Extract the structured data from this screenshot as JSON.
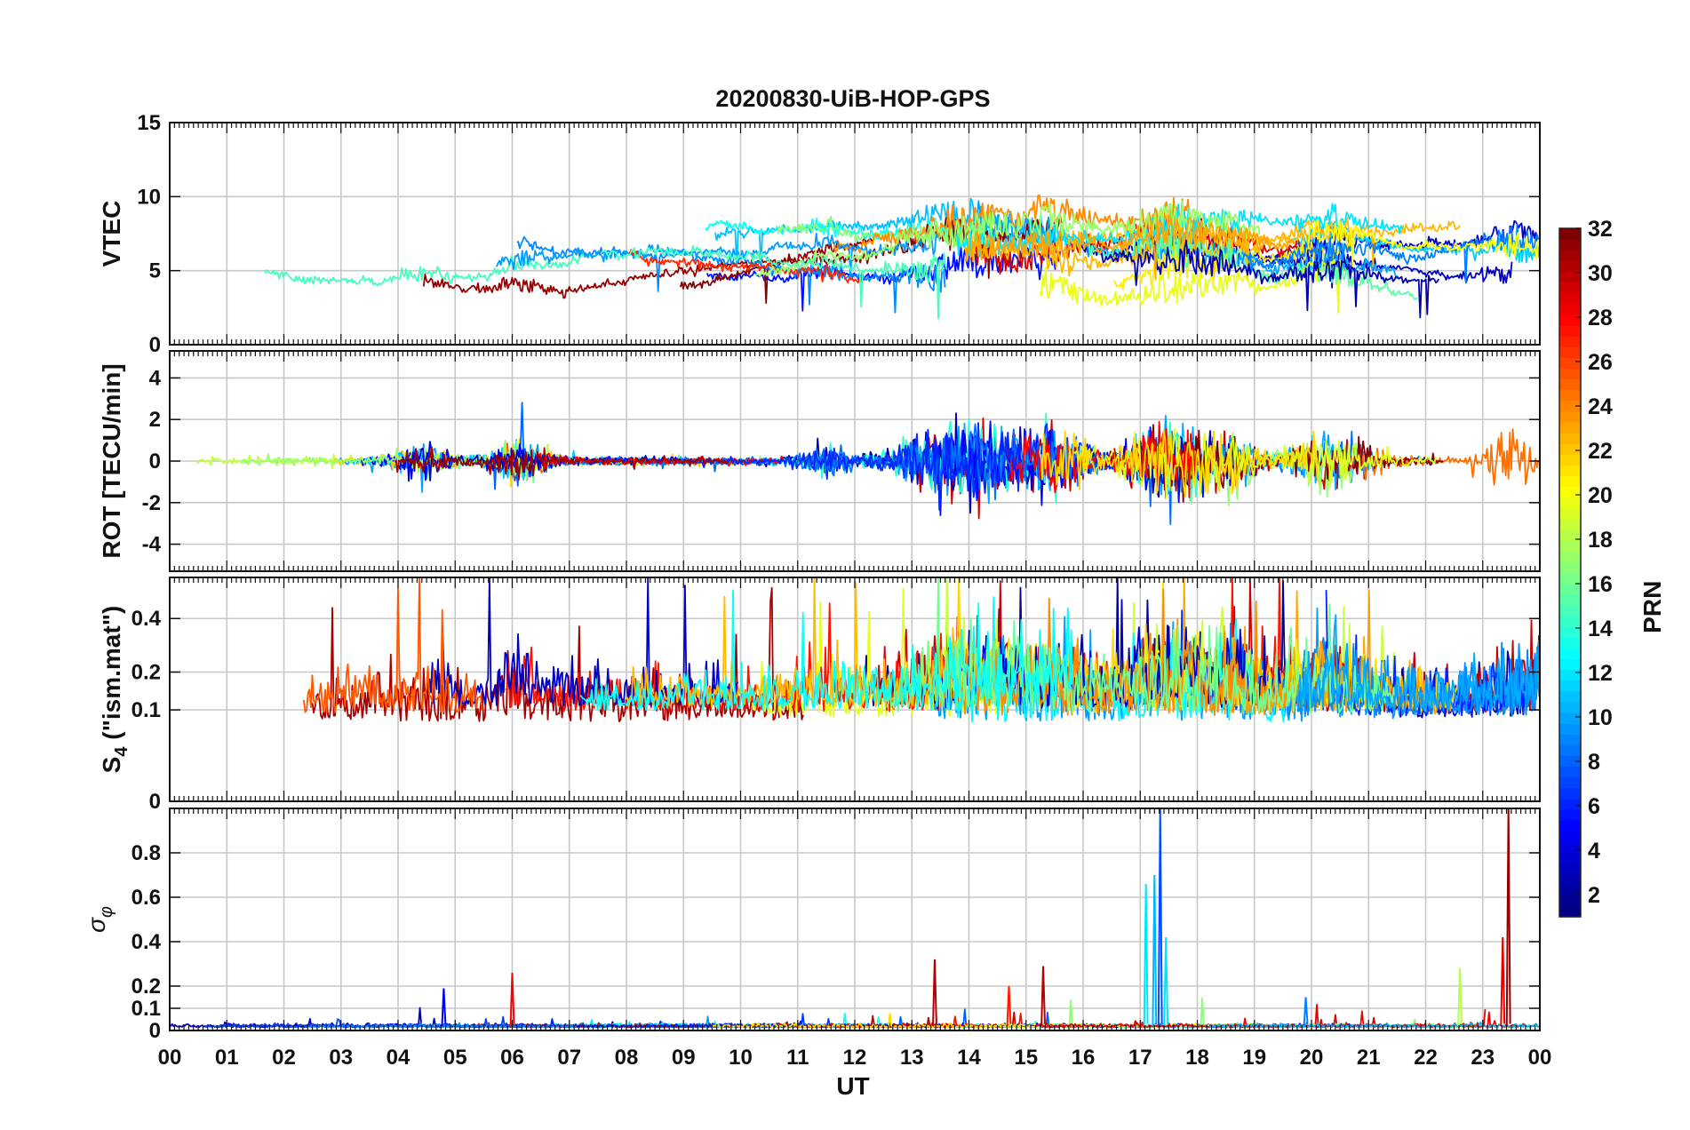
{
  "figure": {
    "title": "20200830-UiB-HOP-GPS",
    "xlabel": "UT",
    "x_ticks": [
      "00",
      "01",
      "02",
      "03",
      "04",
      "05",
      "06",
      "07",
      "08",
      "09",
      "10",
      "11",
      "12",
      "13",
      "14",
      "15",
      "16",
      "17",
      "18",
      "19",
      "20",
      "21",
      "22",
      "23",
      "00"
    ]
  },
  "colorbar": {
    "label": "PRN",
    "range": [
      1,
      32
    ],
    "colormap": "jet",
    "ticks": [
      "2",
      "4",
      "6",
      "8",
      "10",
      "12",
      "14",
      "16",
      "18",
      "20",
      "22",
      "24",
      "26",
      "28",
      "30",
      "32"
    ],
    "tick_values": [
      2,
      4,
      6,
      8,
      10,
      12,
      14,
      16,
      18,
      20,
      22,
      24,
      26,
      28,
      30,
      32
    ]
  },
  "chart_data": [
    {
      "type": "line",
      "panel": "vtec",
      "ylabel": "VTEC",
      "ylim": [
        0,
        15
      ],
      "y_ticks": [
        "0",
        "5",
        "10",
        "15"
      ],
      "y_tick_values": [
        0,
        5,
        10,
        15
      ],
      "xlim": [
        0,
        24
      ],
      "grid": true,
      "series_note_prn_range": [
        1,
        32
      ],
      "typical_range": [
        3,
        11
      ]
    },
    {
      "type": "line",
      "panel": "rot",
      "ylabel": "ROT [TECU/min]",
      "ylim": [
        -5.3,
        5.3
      ],
      "y_ticks": [
        "-4",
        "-2",
        "0",
        "2",
        "4"
      ],
      "y_tick_values": [
        -4,
        -2,
        0,
        2,
        4
      ],
      "xlim": [
        0,
        24
      ],
      "grid": true
    },
    {
      "type": "line",
      "panel": "s4",
      "ylabel": "S4 (\"ism.mat\")",
      "ylabel_main": "S",
      "ylabel_sub": "4",
      "ylabel_rest": " (\"ism.mat\")",
      "ylim": [
        0,
        0.6
      ],
      "y_scale": "sqrt",
      "y_ticks": [
        "0",
        "0.1",
        "0.2",
        "0.4"
      ],
      "y_tick_values": [
        0,
        0.1,
        0.2,
        0.4
      ],
      "xlim": [
        0,
        24
      ],
      "grid": true
    },
    {
      "type": "line",
      "panel": "sigma_phi",
      "ylabel": "σφ",
      "ylabel_main": "σ",
      "ylabel_sub": "φ",
      "ylim": [
        0,
        1
      ],
      "y_ticks": [
        "0",
        "0.1",
        "0.2",
        "0.4",
        "0.6",
        "0.8"
      ],
      "y_tick_values": [
        0,
        0.1,
        0.2,
        0.4,
        0.6,
        0.8
      ],
      "xlim": [
        0,
        24
      ],
      "grid": true
    }
  ]
}
